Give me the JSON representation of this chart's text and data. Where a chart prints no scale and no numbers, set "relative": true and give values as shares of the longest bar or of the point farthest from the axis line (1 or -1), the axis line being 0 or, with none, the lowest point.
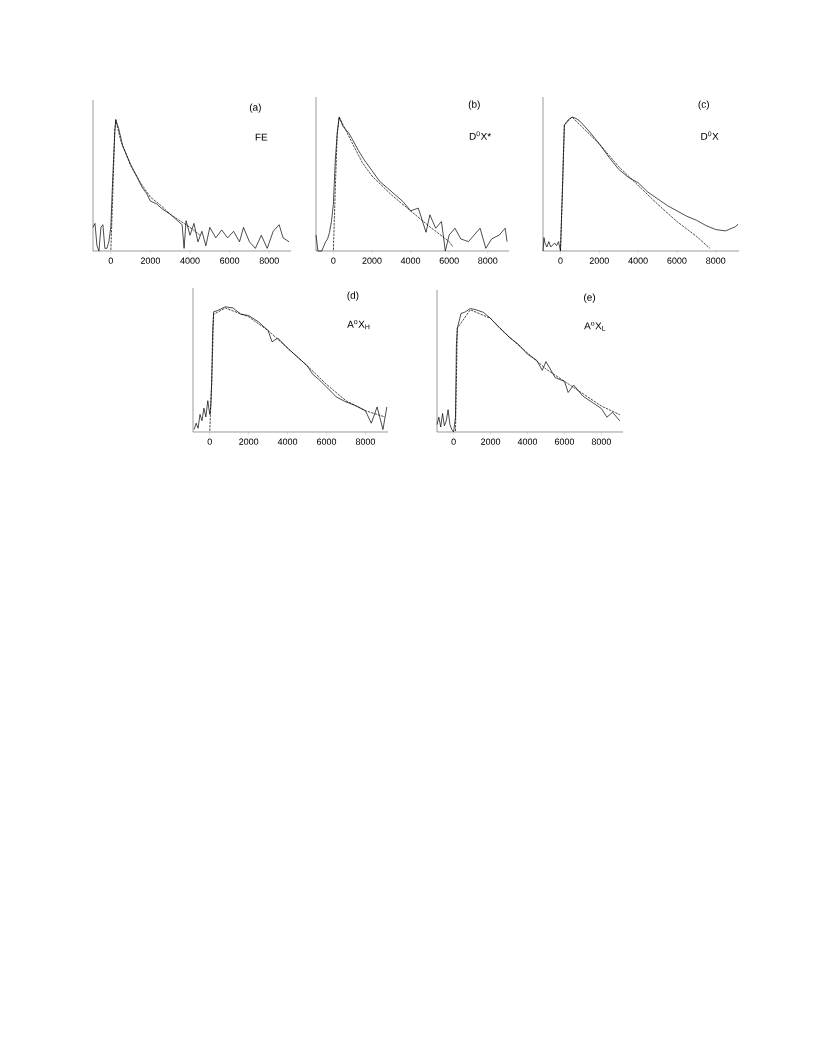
{
  "chart_data": [
    {
      "type": "line",
      "title": "(a)",
      "subtitle": "FE",
      "relative": true,
      "xlim": [
        -900,
        9100
      ],
      "xticks": [
        0,
        2000,
        4000,
        6000,
        8000
      ],
      "series": [
        {
          "color": "#000000",
          "line_style": "solid",
          "x": [
            -900,
            -800,
            -700,
            -600,
            -500,
            -400,
            -300,
            -200,
            -100,
            0,
            100,
            200,
            250,
            400,
            600,
            800,
            1000,
            1300,
            1600,
            1800,
            2000,
            2300,
            2600,
            3000,
            3300,
            3600,
            3700,
            3800,
            4000,
            4200,
            4400,
            4600,
            4800,
            5000,
            5300,
            5600,
            5900,
            6200,
            6500,
            6700,
            7000,
            7300,
            7600,
            7900,
            8200,
            8500,
            8700,
            9000
          ],
          "values": [
            0.18,
            0.21,
            0.04,
            0,
            0.18,
            0.2,
            0.02,
            0.02,
            0.07,
            0.18,
            0.57,
            0.91,
            1,
            0.93,
            0.8,
            0.73,
            0.66,
            0.57,
            0.48,
            0.44,
            0.38,
            0.36,
            0.32,
            0.28,
            0.24,
            0.2,
            0.02,
            0.23,
            0.12,
            0.21,
            0.07,
            0.15,
            0.04,
            0.18,
            0.1,
            0.16,
            0.1,
            0.15,
            0.07,
            0.18,
            0.07,
            0.02,
            0.12,
            0.02,
            0.15,
            0.2,
            0.1,
            0.07
          ]
        },
        {
          "color": "#000000",
          "line_style": "dashed",
          "x": [
            0,
            100,
            200,
            250,
            500,
            1000,
            1500,
            2000,
            2500,
            3000,
            3500,
            4000,
            4500
          ],
          "values": [
            0,
            0.44,
            0.91,
            1,
            0.84,
            0.65,
            0.52,
            0.41,
            0.35,
            0.28,
            0.23,
            0.18,
            0.12
          ]
        }
      ]
    },
    {
      "type": "line",
      "title": "(b)",
      "subtitle": "D$^{0}$X*",
      "relative": true,
      "xlim": [
        -900,
        9100
      ],
      "xticks": [
        0,
        2000,
        4000,
        6000,
        8000
      ],
      "series": [
        {
          "color": "#000000",
          "line_style": "solid",
          "x": [
            -900,
            -800,
            -600,
            -400,
            -300,
            -200,
            -100,
            0,
            100,
            200,
            300,
            500,
            800,
            1000,
            1300,
            1600,
            2000,
            2400,
            2800,
            3200,
            3600,
            4000,
            4400,
            4800,
            5000,
            5300,
            5600,
            5800,
            6000,
            6300,
            6600,
            7000,
            7300,
            7600,
            7900,
            8200,
            8600,
            8900,
            9000
          ],
          "values": [
            0.12,
            0,
            0,
            0.07,
            0.09,
            0.14,
            0.22,
            0.35,
            0.68,
            0.88,
            1,
            0.93,
            0.88,
            0.83,
            0.75,
            0.68,
            0.6,
            0.52,
            0.47,
            0.42,
            0.37,
            0.3,
            0.32,
            0.14,
            0.27,
            0.17,
            0.22,
            0,
            0.12,
            0.17,
            0.09,
            0.07,
            0.12,
            0.17,
            0.02,
            0.09,
            0.12,
            0.17,
            0.07
          ]
        },
        {
          "color": "#000000",
          "line_style": "dashed",
          "x": [
            0,
            100,
            200,
            300,
            1000,
            1500,
            2000,
            3000,
            4000,
            5000,
            6000,
            6200
          ],
          "values": [
            0,
            0.47,
            0.88,
            1,
            0.8,
            0.66,
            0.56,
            0.42,
            0.3,
            0.18,
            0.07,
            0.03
          ]
        }
      ]
    },
    {
      "type": "line",
      "title": "(c)",
      "subtitle": "D$^{0}$X",
      "relative": true,
      "xlim": [
        -900,
        9200
      ],
      "xticks": [
        0,
        2000,
        4000,
        6000,
        8000
      ],
      "series": [
        {
          "color": "#000000",
          "line_style": "solid",
          "x": [
            -900,
            -850,
            -800,
            -700,
            -600,
            -500,
            -300,
            -200,
            -100,
            0,
            100,
            200,
            400,
            600,
            800,
            1000,
            1500,
            2000,
            2500,
            3000,
            3500,
            4000,
            4500,
            5000,
            5500,
            6000,
            6500,
            7000,
            7500,
            8000,
            8500,
            9000,
            9150
          ],
          "values": [
            0,
            0.1,
            0.06,
            0.03,
            0.07,
            0.03,
            0.06,
            0.04,
            0.07,
            0,
            0.44,
            0.94,
            0.98,
            1,
            0.99,
            0.97,
            0.89,
            0.8,
            0.7,
            0.61,
            0.55,
            0.51,
            0.44,
            0.39,
            0.34,
            0.3,
            0.26,
            0.23,
            0.19,
            0.16,
            0.15,
            0.18,
            0.2
          ]
        },
        {
          "color": "#000000",
          "line_style": "dashed",
          "x": [
            0,
            100,
            200,
            600,
            2000,
            3000,
            4000,
            5000,
            6000,
            7000,
            7700
          ],
          "values": [
            0,
            0.47,
            0.94,
            1,
            0.8,
            0.63,
            0.49,
            0.35,
            0.22,
            0.11,
            0.02
          ]
        }
      ]
    },
    {
      "type": "line",
      "title": "(d)",
      "subtitle": "A$^{o}$X$_{H}$",
      "relative": true,
      "xlim": [
        -860,
        9160
      ],
      "xticks": [
        0,
        2000,
        4000,
        6000,
        8000
      ],
      "series": [
        {
          "color": "#000000",
          "line_style": "solid",
          "x": [
            -800,
            -700,
            -600,
            -500,
            -400,
            -300,
            -200,
            -100,
            0,
            50,
            100,
            150,
            200,
            400,
            800,
            1200,
            1600,
            2000,
            2500,
            3000,
            3200,
            3500,
            4000,
            4500,
            5000,
            5300,
            5600,
            6000,
            6500,
            7000,
            7500,
            8000,
            8300,
            8600,
            8900,
            9100
          ],
          "values": [
            0.02,
            0.07,
            0.03,
            0.14,
            0.09,
            0.19,
            0.12,
            0.25,
            0.14,
            0.2,
            0.39,
            0.81,
            0.96,
            0.97,
            1,
            0.99,
            0.94,
            0.93,
            0.88,
            0.81,
            0.72,
            0.75,
            0.67,
            0.6,
            0.53,
            0.46,
            0.42,
            0.36,
            0.28,
            0.24,
            0.21,
            0.17,
            0.07,
            0.2,
            0.02,
            0.2
          ]
        },
        {
          "color": "#000000",
          "line_style": "dashed",
          "x": [
            0,
            100,
            200,
            800,
            2000,
            3000,
            4000,
            5000,
            6000,
            7000,
            8000,
            9000
          ],
          "values": [
            0,
            0.39,
            0.94,
            0.99,
            0.92,
            0.81,
            0.67,
            0.53,
            0.38,
            0.25,
            0.17,
            0.12
          ]
        }
      ]
    },
    {
      "type": "line",
      "title": "(e)",
      "subtitle": "A$^{o}$X$_{L}$",
      "relative": true,
      "xlim": [
        -900,
        9170
      ],
      "xticks": [
        0,
        2000,
        4000,
        6000,
        8000
      ],
      "series": [
        {
          "color": "#000000",
          "line_style": "solid",
          "x": [
            -900,
            -800,
            -700,
            -600,
            -500,
            -400,
            -300,
            -200,
            -100,
            0,
            100,
            150,
            200,
            400,
            600,
            900,
            1200,
            1600,
            2000,
            2500,
            3000,
            3500,
            4000,
            4500,
            4800,
            5000,
            5500,
            6000,
            6200,
            6500,
            7000,
            7500,
            8000,
            8300,
            8600,
            9000
          ],
          "values": [
            0.06,
            0.12,
            0.04,
            0.15,
            0.05,
            0.09,
            0.18,
            0.06,
            0.02,
            0,
            0.12,
            0.7,
            0.84,
            0.96,
            0.97,
            1,
            0.99,
            0.97,
            0.92,
            0.84,
            0.77,
            0.71,
            0.63,
            0.58,
            0.5,
            0.57,
            0.44,
            0.41,
            0.32,
            0.38,
            0.29,
            0.24,
            0.19,
            0.12,
            0.16,
            0.09
          ]
        },
        {
          "color": "#000000",
          "line_style": "dashed",
          "x": [
            100,
            200,
            900,
            2000,
            3000,
            4000,
            5000,
            6000,
            7000,
            8000,
            9000
          ],
          "values": [
            0,
            0.84,
            0.99,
            0.92,
            0.77,
            0.64,
            0.51,
            0.41,
            0.31,
            0.21,
            0.14
          ]
        }
      ]
    }
  ]
}
